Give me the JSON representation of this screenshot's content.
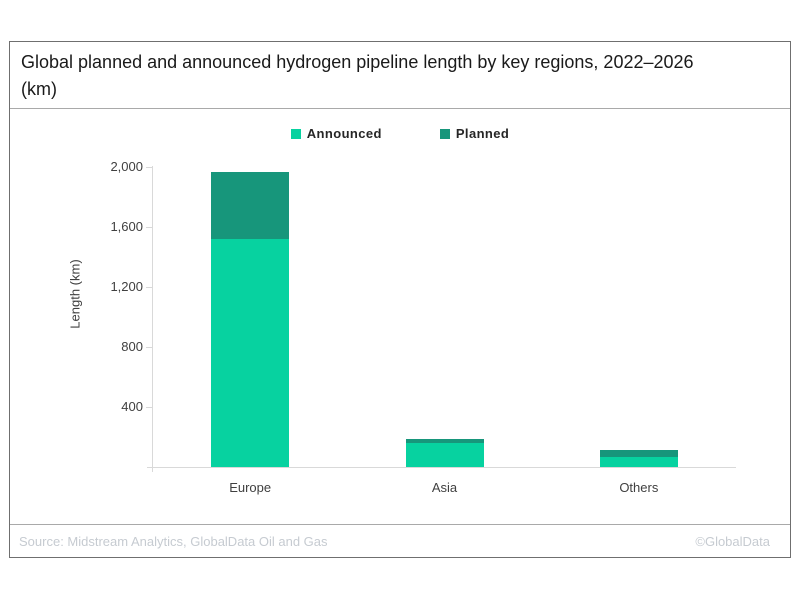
{
  "header": {
    "title_line1": "Global planned and announced hydrogen pipeline length by key regions, 2022–2026",
    "title_line2": "(km)"
  },
  "footer": {
    "source": "Source: Midstream Analytics, GlobalData Oil and Gas",
    "copyright": "©GlobalData"
  },
  "chart_data": {
    "type": "bar",
    "stacked": true,
    "title": "Global planned and announced hydrogen pipeline length by key regions, 2022–2026 (km)",
    "categories": [
      "Europe",
      "Asia",
      "Others"
    ],
    "series": [
      {
        "name": "Announced",
        "values": [
          1520,
          160,
          65
        ],
        "color": "#07d2a0"
      },
      {
        "name": "Planned",
        "values": [
          450,
          25,
          50
        ],
        "color": "#17967b"
      }
    ],
    "totals": [
      1970,
      185,
      115
    ],
    "xlabel": "",
    "ylabel": "Length (km)",
    "ylim": [
      0,
      2000
    ],
    "yticks": [
      400,
      800,
      1200,
      1600,
      2000
    ],
    "ytick_labels": [
      "400",
      "800",
      "1,200",
      "1,600",
      "2,000"
    ],
    "legend_position": "top-center",
    "grid": false,
    "axis_color": "#d9d9d9",
    "tick_label_color": "#404040"
  }
}
